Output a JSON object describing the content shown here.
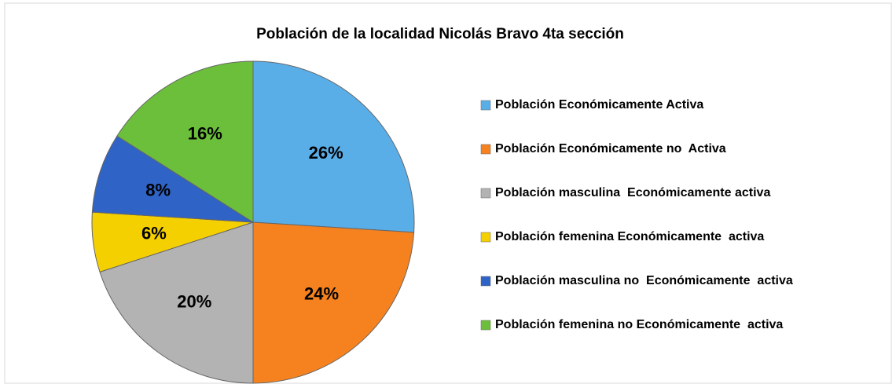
{
  "chart_data": {
    "type": "pie",
    "title": "Población de la localidad Nicolás Bravo 4ta sección",
    "categories": [
      "Población Económicamente Activa",
      "Población Económicamente no  Activa",
      "Población masculina  Económicamente activa",
      "Población femenina Económicamente  activa",
      "Población masculina no  Económicamente  activa",
      "Población femenina no Económicamente  activa"
    ],
    "values": [
      26,
      24,
      20,
      6,
      8,
      16
    ],
    "value_labels": [
      "26%",
      "24%",
      "20%",
      "6%",
      "8%",
      "16%"
    ],
    "colors": [
      "#5aaee8",
      "#f5821f",
      "#b3b3b3",
      "#f5d000",
      "#2f63c6",
      "#6cbf3a"
    ],
    "legend": "right"
  }
}
